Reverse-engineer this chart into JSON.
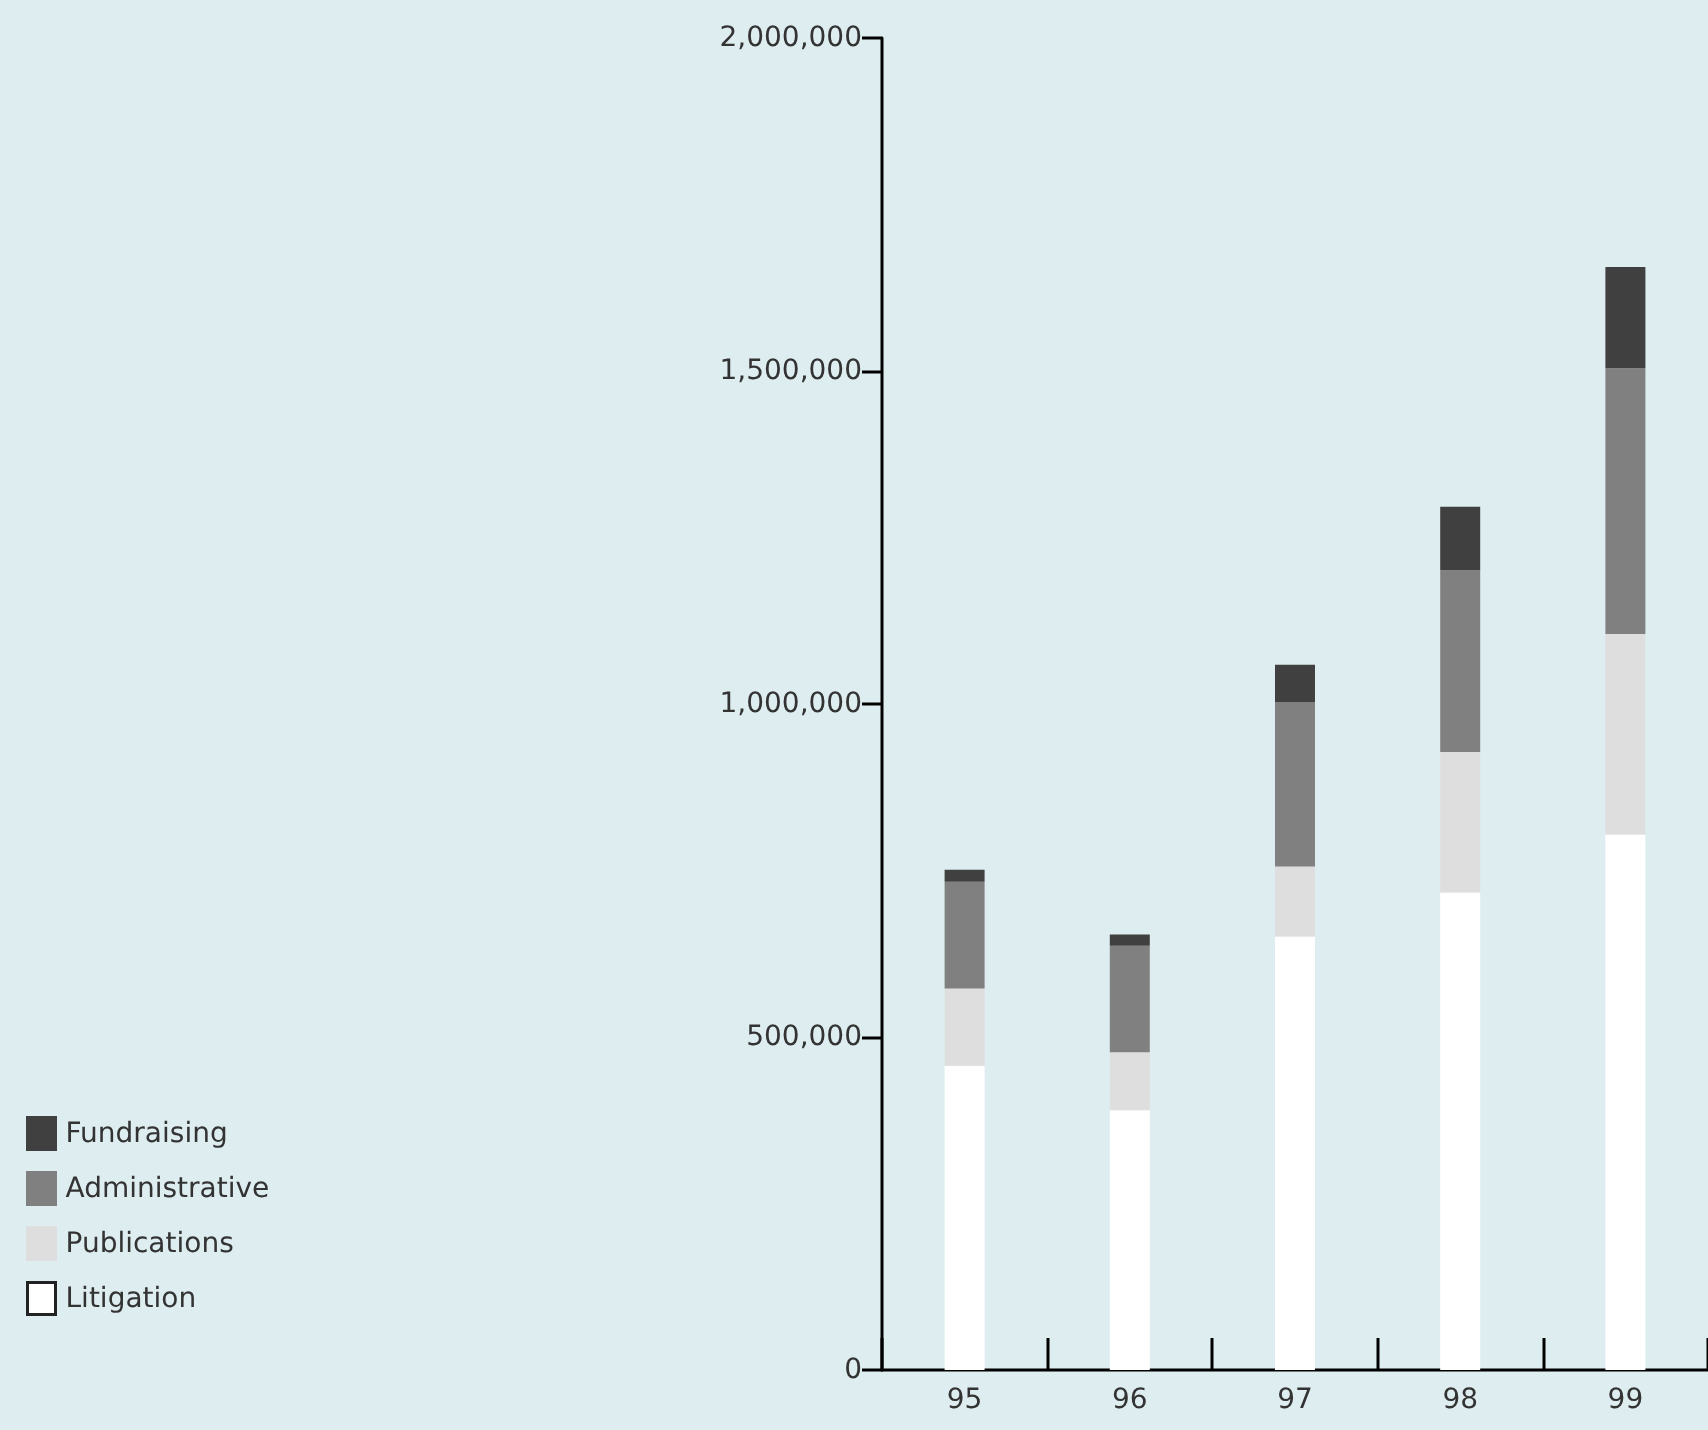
{
  "chart_data": {
    "type": "bar",
    "stacked": true,
    "categories": [
      "95",
      "96",
      "97",
      "98",
      "99"
    ],
    "series": [
      {
        "name": "Litigation",
        "color": "#ffffff",
        "values": [
          457000,
          390000,
          651000,
          717000,
          804000
        ]
      },
      {
        "name": "Publications",
        "color": "#dedede",
        "values": [
          116000,
          87000,
          105000,
          211000,
          301000
        ]
      },
      {
        "name": "Administrative",
        "color": "#808080",
        "values": [
          160000,
          160000,
          247000,
          273000,
          399000
        ]
      },
      {
        "name": "Fundraising",
        "color": "#404040",
        "values": [
          18000,
          17000,
          56000,
          95000,
          152000
        ]
      }
    ],
    "ylim": [
      0,
      2000000
    ],
    "yticks": [
      0,
      {
        "value": 500000,
        "label": "500,000"
      },
      {
        "value": 1000000,
        "label": "1,000,000"
      },
      {
        "value": 1500000,
        "label": "1,500,000"
      },
      {
        "value": 2000000,
        "label": "2,000,000"
      }
    ],
    "grid": false,
    "legend": "bottom left"
  }
}
